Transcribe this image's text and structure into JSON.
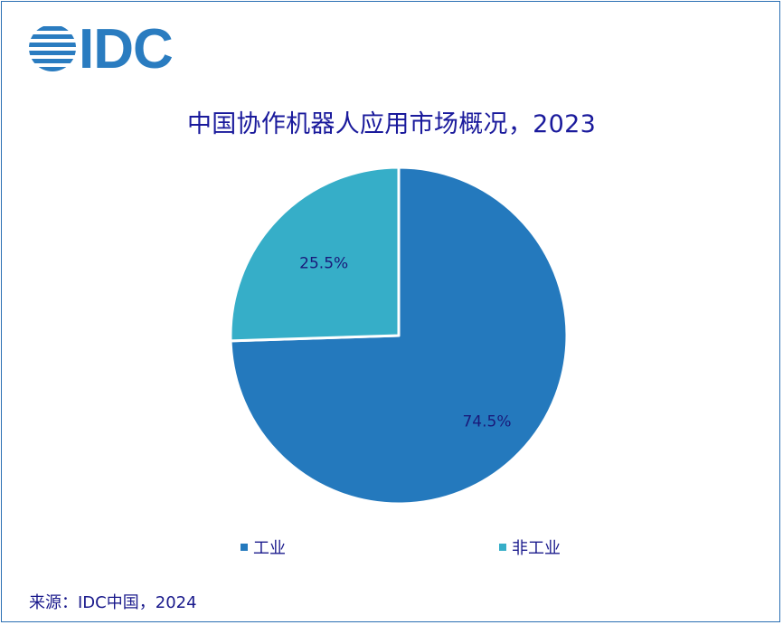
{
  "logo": {
    "text": "IDC",
    "color": "#2a7cc0"
  },
  "title": "中国协作机器人应用市场概况，2023",
  "source": "来源：IDC中国，2024",
  "colors": {
    "title": "#1a1a9c",
    "border": "#2a6fb3",
    "label": "#1a1a7a"
  },
  "chart_data": {
    "type": "pie",
    "title": "中国协作机器人应用市场概况，2023",
    "slices": [
      {
        "name": "工业",
        "value": 74.5,
        "label": "74.5%",
        "color": "#2479bd"
      },
      {
        "name": "非工业",
        "value": 25.5,
        "label": "25.5%",
        "color": "#36aec8"
      }
    ],
    "start_angle": "12 o'clock",
    "direction": "clockwise",
    "legend_placement": "bottom"
  }
}
